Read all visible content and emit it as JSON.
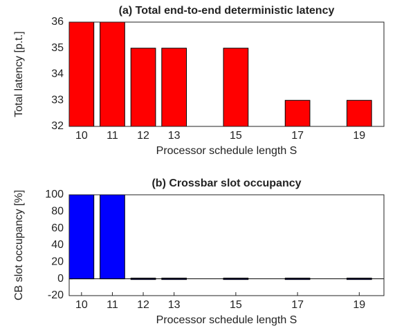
{
  "chart_data": [
    {
      "type": "bar",
      "title": "(a) Total end-to-end deterministic latency",
      "x_label": "Processor schedule length S",
      "y_label": "Total latency [p.t.]",
      "x": [
        10,
        11,
        12,
        13,
        15,
        17,
        19
      ],
      "values": [
        36,
        36,
        35,
        35,
        35,
        33,
        33
      ],
      "color": "#ff0000",
      "xlim": [
        9.6,
        19.8
      ],
      "xticks": [
        10,
        11,
        12,
        13,
        15,
        17,
        19
      ],
      "ylim": [
        32,
        36
      ],
      "yticks": [
        32,
        33,
        34,
        35,
        36
      ],
      "grid": false
    },
    {
      "type": "bar",
      "title": "(b) Crossbar slot occupancy",
      "x_label": "Processor schedule length S",
      "y_label": "CB slot occupancy [%]",
      "x": [
        10,
        11,
        12,
        13,
        15,
        17,
        19
      ],
      "values": [
        100,
        100,
        0,
        0,
        0,
        0,
        0
      ],
      "color": "#0000ff",
      "xlim": [
        9.6,
        19.8
      ],
      "xticks": [
        10,
        11,
        12,
        13,
        15,
        17,
        19
      ],
      "ylim": [
        -20,
        100
      ],
      "yticks": [
        -20,
        0,
        20,
        40,
        60,
        80,
        100
      ],
      "grid": false
    }
  ]
}
